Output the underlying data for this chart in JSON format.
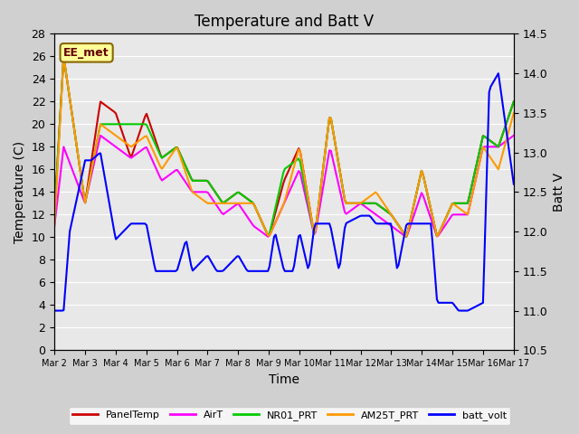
{
  "title": "Temperature and Batt V",
  "xlabel": "Time",
  "ylabel_left": "Temperature (C)",
  "ylabel_right": "Batt V",
  "annotation": "EE_met",
  "ylim_left": [
    0,
    28
  ],
  "ylim_right": [
    10.5,
    14.5
  ],
  "x_tick_labels": [
    "Mar 2",
    "Mar 3",
    "Mar 4",
    "Mar 5",
    "Mar 6",
    "Mar 7",
    "Mar 8",
    "Mar 9",
    "Mar 10",
    "Mar 11",
    "Mar 12",
    "Mar 13",
    "Mar 14",
    "Mar 15",
    "Mar 16",
    "Mar 17"
  ],
  "background_color": "#e8e8e8",
  "plot_bg_color": "#e8e8e8",
  "series": {
    "PanelTemp": {
      "color": "#cc0000",
      "lw": 1.5
    },
    "AirT": {
      "color": "#ff00ff",
      "lw": 1.5
    },
    "NR01_PRT": {
      "color": "#00cc00",
      "lw": 1.5
    },
    "AM25T_PRT": {
      "color": "#ff9900",
      "lw": 1.5
    },
    "batt_volt": {
      "color": "#0000ff",
      "lw": 1.5
    }
  },
  "legend": [
    {
      "label": "PanelTemp",
      "color": "#cc0000"
    },
    {
      "label": "AirT",
      "color": "#ff00ff"
    },
    {
      "label": "NR01_PRT",
      "color": "#00cc00"
    },
    {
      "label": "AM25T_PRT",
      "color": "#ff9900"
    },
    {
      "label": "batt_volt",
      "color": "#0000ff"
    }
  ]
}
